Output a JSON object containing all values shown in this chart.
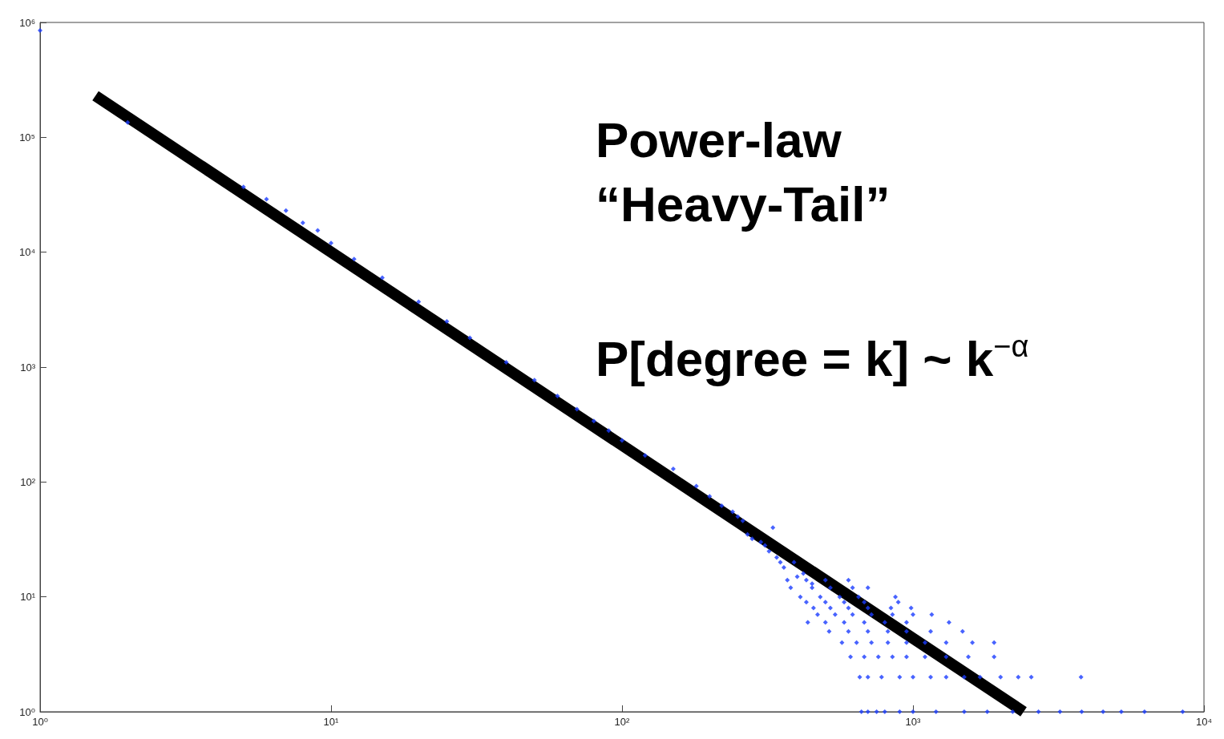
{
  "chart_data": {
    "type": "scatter",
    "log": "xy",
    "grid": false,
    "marker": "diamond",
    "xlim": [
      1,
      10000
    ],
    "ylim": [
      1,
      1000000
    ],
    "xticks": [
      {
        "value": 1,
        "label": "10⁰"
      },
      {
        "value": 10,
        "label": "10¹"
      },
      {
        "value": 100,
        "label": "10²"
      },
      {
        "value": 1000,
        "label": "10³"
      },
      {
        "value": 10000,
        "label": "10⁴"
      }
    ],
    "yticks": [
      {
        "value": 1,
        "label": "10⁰"
      },
      {
        "value": 10,
        "label": "10¹"
      },
      {
        "value": 100,
        "label": "10²"
      },
      {
        "value": 1000,
        "label": "10³"
      },
      {
        "value": 10000,
        "label": "10⁴"
      },
      {
        "value": 100000,
        "label": "10⁵"
      },
      {
        "value": 1000000,
        "label": "10⁶"
      }
    ],
    "annotations": [
      "Power-law",
      "“Heavy-Tail”",
      "P[degree = k] ~ k$^{−α}$"
    ],
    "series": [
      {
        "color": "#1a3cff",
        "x": [
          1,
          2,
          5,
          6,
          7,
          8,
          9,
          10,
          12,
          15,
          20,
          25,
          30,
          40,
          50,
          60,
          70,
          80,
          90,
          100,
          120,
          150,
          180,
          200,
          220,
          240,
          250,
          260,
          270,
          280,
          300,
          310,
          320,
          330,
          340,
          350,
          360,
          390,
          400,
          420,
          450,
          370,
          430,
          500,
          600,
          380,
          450,
          520,
          620,
          700,
          410,
          480,
          560,
          650,
          870,
          430,
          500,
          580,
          680,
          890,
          455,
          520,
          600,
          700,
          840,
          985,
          470,
          540,
          620,
          720,
          850,
          1000,
          1160,
          435,
          500,
          580,
          680,
          800,
          950,
          1330,
          515,
          600,
          700,
          820,
          950,
          1150,
          1480,
          570,
          640,
          720,
          820,
          950,
          1100,
          1300,
          1600,
          1900,
          610,
          680,
          760,
          850,
          950,
          1100,
          1300,
          1550,
          1900,
          656,
          700,
          780,
          900,
          1000,
          1150,
          1300,
          1500,
          1700,
          2000,
          2300,
          2550,
          3780,
          665,
          700,
          750,
          800,
          900,
          1000,
          1200,
          1500,
          1800,
          2200,
          2700,
          3200,
          3800,
          4500,
          5200,
          6250,
          8450
        ],
        "values": [
          850000,
          135000,
          37000,
          29000,
          23000,
          18000,
          15500,
          12000,
          8700,
          6000,
          3700,
          2500,
          1800,
          1100,
          770,
          560,
          430,
          340,
          280,
          230,
          170,
          130,
          92,
          75,
          62,
          55,
          50,
          46,
          35,
          32,
          30,
          28,
          25,
          40,
          22,
          20,
          18,
          20,
          15,
          16,
          13,
          14,
          14,
          14,
          14,
          12,
          12,
          12,
          12,
          12,
          10,
          10,
          10,
          10,
          10,
          9,
          9,
          9,
          9,
          9,
          8,
          8,
          8,
          8,
          8,
          8,
          7,
          7,
          7,
          7,
          7,
          7,
          7,
          6,
          6,
          6,
          6,
          6,
          6,
          6,
          5,
          5,
          5,
          5,
          5,
          5,
          5,
          4,
          4,
          4,
          4,
          4,
          4,
          4,
          4,
          4,
          3,
          3,
          3,
          3,
          3,
          3,
          3,
          3,
          3,
          2,
          2,
          2,
          2,
          2,
          2,
          2,
          2,
          2,
          2,
          2,
          2,
          2,
          1,
          1,
          1,
          1,
          1,
          1,
          1,
          1,
          1,
          1,
          1,
          1,
          1,
          1,
          1,
          1,
          1
        ]
      },
      {
        "type": "line",
        "marker": "none",
        "color": "#000000",
        "x": [
          1.55,
          2400
        ],
        "values": [
          230000,
          1
        ]
      }
    ]
  }
}
